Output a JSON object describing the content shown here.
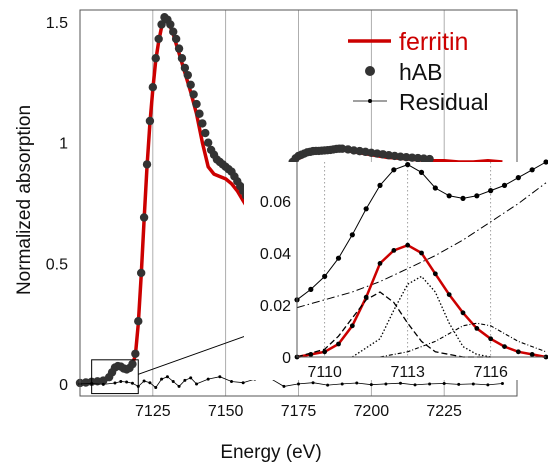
{
  "chart_data": [
    {
      "type": "line",
      "xlabel": "Energy (eV)",
      "ylabel": "Normalized absorption",
      "xlim": [
        7100,
        7250
      ],
      "ylim": [
        -0.05,
        1.55
      ],
      "x_ticks": [
        "7125",
        "7150",
        "7175",
        "7200",
        "7225"
      ],
      "x_tick_values": [
        7125,
        7150,
        7175,
        7200,
        7225
      ],
      "y_ticks": [
        "0",
        "0.5",
        "1",
        "1.5"
      ],
      "y_tick_values": [
        0,
        0.5,
        1,
        1.5
      ],
      "grid": "vertical",
      "legend_position": "top-right",
      "series": [
        {
          "name": "ferritin",
          "style": "red-line",
          "color": "#cc0000",
          "x": [
            7100,
            7104,
            7106,
            7108,
            7110,
            7111,
            7112,
            7113,
            7114,
            7115,
            7116,
            7117,
            7118,
            7119,
            7120,
            7121,
            7122,
            7123,
            7124,
            7125,
            7126,
            7127,
            7128,
            7129,
            7130,
            7131,
            7132,
            7133,
            7134,
            7135,
            7136,
            7137,
            7138,
            7140,
            7142,
            7144,
            7146,
            7148,
            7150,
            7152,
            7154,
            7156,
            7158,
            7160,
            7162,
            7164,
            7166,
            7168,
            7170,
            7172,
            7174,
            7176,
            7178,
            7180,
            7182,
            7184,
            7186,
            7188,
            7190,
            7195,
            7200,
            7205,
            7210,
            7215,
            7220,
            7225,
            7230,
            7235,
            7240,
            7245
          ],
          "y": [
            0.005,
            0.01,
            0.012,
            0.015,
            0.03,
            0.05,
            0.07,
            0.075,
            0.072,
            0.065,
            0.06,
            0.065,
            0.08,
            0.12,
            0.25,
            0.45,
            0.68,
            0.9,
            1.08,
            1.22,
            1.34,
            1.42,
            1.48,
            1.51,
            1.5,
            1.48,
            1.45,
            1.41,
            1.37,
            1.33,
            1.29,
            1.25,
            1.21,
            1.12,
            1.0,
            0.9,
            0.87,
            0.86,
            0.85,
            0.83,
            0.8,
            0.76,
            0.72,
            0.69,
            0.68,
            0.7,
            0.75,
            0.81,
            0.87,
            0.91,
            0.93,
            0.94,
            0.955,
            0.96,
            0.965,
            0.965,
            0.965,
            0.97,
            0.97,
            0.96,
            0.95,
            0.94,
            0.935,
            0.93,
            0.925,
            0.925,
            0.92,
            0.92,
            0.925,
            0.92
          ]
        },
        {
          "name": "hAB",
          "style": "black-dots",
          "color": "#333333",
          "x": [
            7100,
            7102,
            7104,
            7106,
            7108,
            7110,
            7111,
            7112,
            7113,
            7114,
            7115,
            7116,
            7117,
            7118,
            7119,
            7120,
            7121,
            7122,
            7123,
            7124,
            7125,
            7126,
            7127,
            7128,
            7129,
            7130,
            7131,
            7132,
            7133,
            7134,
            7135,
            7136,
            7137,
            7138,
            7139,
            7140,
            7141,
            7142,
            7143,
            7144,
            7145,
            7146,
            7147,
            7148,
            7149,
            7150,
            7151,
            7152,
            7153,
            7154,
            7155,
            7156,
            7157,
            7158,
            7159,
            7160,
            7161,
            7162,
            7163,
            7164,
            7165,
            7166,
            7167,
            7168,
            7169,
            7170,
            7171,
            7172,
            7173,
            7174,
            7175,
            7176,
            7177,
            7178,
            7179,
            7180,
            7181,
            7182,
            7183,
            7184,
            7185,
            7186,
            7187,
            7188,
            7189,
            7190,
            7192,
            7194,
            7196,
            7198,
            7200,
            7202,
            7204,
            7206,
            7208,
            7210,
            7212,
            7214,
            7216,
            7218,
            7220
          ],
          "y": [
            0.004,
            0.006,
            0.009,
            0.011,
            0.014,
            0.028,
            0.048,
            0.068,
            0.074,
            0.072,
            0.064,
            0.06,
            0.066,
            0.082,
            0.125,
            0.26,
            0.46,
            0.69,
            0.91,
            1.09,
            1.23,
            1.35,
            1.43,
            1.49,
            1.52,
            1.51,
            1.49,
            1.46,
            1.43,
            1.39,
            1.35,
            1.31,
            1.28,
            1.24,
            1.2,
            1.16,
            1.12,
            1.08,
            1.04,
            1.0,
            0.97,
            0.95,
            0.93,
            0.92,
            0.91,
            0.9,
            0.89,
            0.88,
            0.86,
            0.84,
            0.82,
            0.8,
            0.78,
            0.76,
            0.74,
            0.72,
            0.7,
            0.69,
            0.68,
            0.685,
            0.7,
            0.72,
            0.75,
            0.78,
            0.81,
            0.85,
            0.88,
            0.9,
            0.92,
            0.935,
            0.945,
            0.95,
            0.955,
            0.96,
            0.962,
            0.965,
            0.966,
            0.966,
            0.967,
            0.968,
            0.969,
            0.97,
            0.972,
            0.974,
            0.975,
            0.975,
            0.972,
            0.968,
            0.965,
            0.962,
            0.958,
            0.955,
            0.952,
            0.948,
            0.945,
            0.942,
            0.94,
            0.938,
            0.936,
            0.934,
            0.932
          ]
        },
        {
          "name": "Residual",
          "style": "small-dots-line",
          "color": "#000000",
          "x": [
            7100,
            7104,
            7108,
            7112,
            7114,
            7116,
            7118,
            7120,
            7122,
            7124,
            7126,
            7128,
            7130,
            7132,
            7134,
            7136,
            7138,
            7140,
            7144,
            7148,
            7152,
            7156,
            7160,
            7165,
            7170,
            7175,
            7180,
            7185,
            7190,
            7195,
            7200,
            7205,
            7210,
            7215,
            7220,
            7225,
            7230,
            7235,
            7240,
            7245
          ],
          "y": [
            0.0,
            0.002,
            -0.002,
            0.004,
            0.01,
            0.008,
            0.003,
            -0.01,
            0.012,
            0.005,
            -0.015,
            0.02,
            0.03,
            0.01,
            -0.01,
            0.015,
            0.025,
            0.0,
            0.02,
            0.03,
            0.01,
            0.005,
            0.02,
            0.025,
            -0.01,
            0.0,
            0.005,
            -0.005,
            0.0,
            0.004,
            -0.003,
            0.0,
            0.003,
            -0.004,
            0.0,
            0.002,
            -0.002,
            0.0,
            -0.004,
            0.002
          ]
        }
      ],
      "annotations": [
        "zoom-box: x 7104–7120, y -0.04–0.10, arrow to inset"
      ]
    },
    {
      "type": "line",
      "placement": "inset",
      "xlim": [
        7109,
        7118
      ],
      "ylim": [
        0,
        0.075
      ],
      "x_ticks": [
        "7110",
        "7113",
        "7116"
      ],
      "x_tick_values": [
        7110,
        7113,
        7116
      ],
      "y_ticks": [
        "0",
        "0.02",
        "0.04",
        "0.06"
      ],
      "y_tick_values": [
        0,
        0.02,
        0.04,
        0.06
      ],
      "grid": "vertical-dotted",
      "series": [
        {
          "style": "black-dots-line",
          "color": "#000000",
          "x": [
            7109,
            7109.5,
            7110,
            7110.5,
            7111,
            7111.5,
            7112,
            7112.5,
            7113,
            7113.5,
            7114,
            7114.5,
            7115,
            7115.5,
            7116,
            7116.5,
            7117,
            7117.5,
            7118
          ],
          "y": [
            0.022,
            0.026,
            0.031,
            0.038,
            0.047,
            0.057,
            0.066,
            0.072,
            0.074,
            0.071,
            0.065,
            0.062,
            0.061,
            0.062,
            0.064,
            0.066,
            0.069,
            0.072,
            0.075
          ]
        },
        {
          "style": "dash-dot",
          "color": "#000000",
          "x": [
            7109,
            7110,
            7111,
            7112,
            7113,
            7114,
            7115,
            7116,
            7117,
            7118
          ],
          "y": [
            0.019,
            0.022,
            0.025,
            0.029,
            0.034,
            0.039,
            0.045,
            0.052,
            0.059,
            0.067
          ]
        },
        {
          "style": "red-fit-with-dots",
          "color": "#cc0000",
          "x": [
            7109,
            7109.5,
            7110,
            7110.5,
            7111,
            7111.5,
            7112,
            7112.5,
            7113,
            7113.5,
            7114,
            7114.5,
            7115,
            7115.5,
            7116,
            7116.5,
            7117,
            7117.5,
            7118
          ],
          "y": [
            0.0,
            0.001,
            0.002,
            0.005,
            0.012,
            0.023,
            0.036,
            0.041,
            0.043,
            0.04,
            0.032,
            0.024,
            0.017,
            0.011,
            0.007,
            0.004,
            0.002,
            0.001,
            0.0
          ]
        },
        {
          "style": "dashed",
          "color": "#000000",
          "x": [
            7109,
            7110,
            7110.5,
            7111,
            7111.5,
            7112,
            7112.5,
            7113,
            7113.5,
            7114,
            7115,
            7116
          ],
          "y": [
            0.0,
            0.003,
            0.008,
            0.015,
            0.022,
            0.025,
            0.021,
            0.013,
            0.006,
            0.002,
            0.0,
            0.0
          ]
        },
        {
          "style": "dotted",
          "color": "#000000",
          "x": [
            7111,
            7112,
            7112.5,
            7113,
            7113.5,
            7114,
            7114.5,
            7115,
            7115.5,
            7116
          ],
          "y": [
            0.0,
            0.007,
            0.018,
            0.028,
            0.031,
            0.025,
            0.013,
            0.004,
            0.001,
            0.0
          ]
        },
        {
          "style": "dashed-fine",
          "color": "#000000",
          "x": [
            7112,
            7113,
            7114,
            7114.5,
            7115,
            7115.5,
            7116,
            7116.5,
            7117,
            7118
          ],
          "y": [
            0.0,
            0.002,
            0.006,
            0.009,
            0.012,
            0.013,
            0.012,
            0.009,
            0.006,
            0.002
          ]
        }
      ]
    }
  ]
}
